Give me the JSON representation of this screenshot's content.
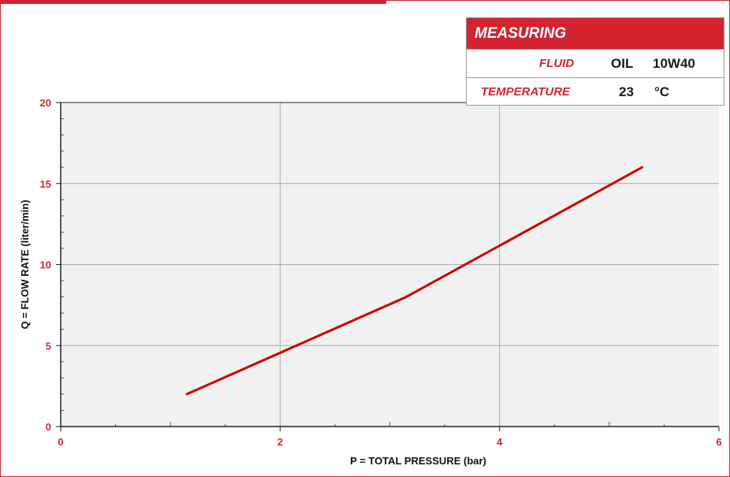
{
  "colors": {
    "accent": "#d42330",
    "plot_bg": "#f1f1f1",
    "grid": "#aaaaaa",
    "line": "#cc0000"
  },
  "info": {
    "header": "MEASURING",
    "fluid_label": "FLUID",
    "fluid_value_1": "OIL",
    "fluid_value_2": "10W40",
    "temperature_label": "TEMPERATURE",
    "temperature_value": "23",
    "temperature_unit": "°C"
  },
  "chart_data": {
    "type": "line",
    "xlabel": "P = TOTAL PRESSURE (bar)",
    "ylabel": "Q = FLOW RATE (liter/min)",
    "xlim": [
      0,
      6
    ],
    "ylim": [
      0,
      20
    ],
    "x_ticks": [
      "0",
      "2",
      "4",
      "6"
    ],
    "y_ticks": [
      "0",
      "5",
      "10",
      "15",
      "20"
    ],
    "grid": true,
    "series": [
      {
        "x": [
          1.15,
          3.15,
          5.3
        ],
        "values": [
          2.0,
          8.0,
          16.0
        ]
      }
    ]
  }
}
